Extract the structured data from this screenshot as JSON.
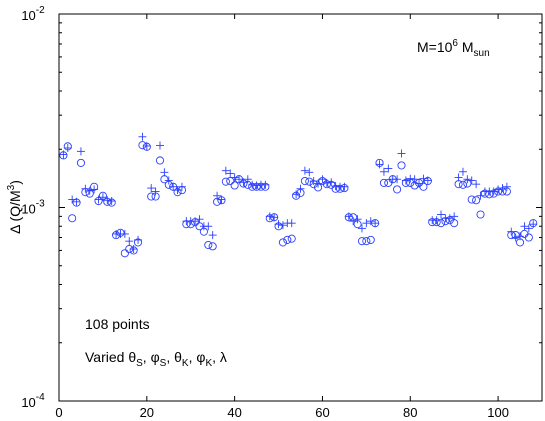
{
  "chart_data": {
    "type": "scatter",
    "xlabel": "",
    "ylabel": "Δ (Q/M³)",
    "ylabel_parts": {
      "main": "Δ (Q/M",
      "sup": "3",
      "tail": ")"
    },
    "xlim": [
      0,
      110
    ],
    "ylim": [
      0.0001,
      0.01
    ],
    "yscale": "log",
    "grid": false,
    "x_ticks": [
      0,
      20,
      40,
      60,
      80,
      100
    ],
    "y_ticks": [
      {
        "value": 0.0001,
        "base": "10",
        "exp": "-4"
      },
      {
        "value": 0.001,
        "base": "10",
        "exp": "-3"
      },
      {
        "value": 0.01,
        "base": "10",
        "exp": "-2"
      }
    ],
    "annotation_mass": {
      "prefix": "M=10",
      "exp": "6",
      "unit": " M",
      "sub": "sun"
    },
    "annotation_points": "108 points",
    "annotation_varied": {
      "prefix": "Varied ",
      "items": [
        {
          "sym": "θ",
          "sub": "S",
          "sep": ", "
        },
        {
          "sym": "φ",
          "sub": "S",
          "sep": ", "
        },
        {
          "sym": "θ",
          "sub": "K",
          "sep": ", "
        },
        {
          "sym": "φ",
          "sub": "K",
          "sep": ", "
        },
        {
          "sym": "λ",
          "sub": "",
          "sep": ""
        }
      ]
    },
    "series": [
      {
        "marker": "circle",
        "color": "#2a3fff",
        "x": [
          1,
          2,
          3,
          4,
          5,
          6,
          7,
          8,
          9,
          10,
          11,
          12,
          13,
          14,
          15,
          16,
          17,
          18,
          19,
          20,
          21,
          22,
          23,
          24,
          25,
          26,
          27,
          28,
          29,
          30,
          31,
          32,
          33,
          34,
          35,
          36,
          37,
          38,
          39,
          40,
          41,
          42,
          43,
          44,
          45,
          46,
          47,
          48,
          49,
          50,
          51,
          52,
          53,
          54,
          55,
          56,
          57,
          58,
          59,
          60,
          61,
          62,
          63,
          64,
          65,
          66,
          67,
          68,
          69,
          70,
          71,
          72,
          73,
          74,
          75,
          76,
          77,
          78,
          79,
          80,
          81,
          82,
          83,
          84,
          85,
          86,
          87,
          88,
          89,
          90,
          91,
          92,
          93,
          94,
          95,
          96,
          97,
          98,
          99,
          100,
          101,
          102,
          103,
          104,
          105,
          106,
          107,
          108
        ],
        "y": [
          0.00186,
          0.00207,
          0.00088,
          0.00106,
          0.0017,
          0.0012,
          0.00118,
          0.00128,
          0.00108,
          0.00115,
          0.00107,
          0.00106,
          0.00072,
          0.00074,
          0.00058,
          0.00061,
          0.0006,
          0.00066,
          0.0021,
          0.00206,
          0.00114,
          0.00114,
          0.00175,
          0.0014,
          0.00131,
          0.00128,
          0.0012,
          0.00123,
          0.00082,
          0.00082,
          0.00084,
          0.0008,
          0.00075,
          0.00064,
          0.00063,
          0.00107,
          0.00109,
          0.00136,
          0.00137,
          0.0013,
          0.0014,
          0.00133,
          0.00131,
          0.00128,
          0.00128,
          0.00128,
          0.00128,
          0.00088,
          0.00089,
          0.0008,
          0.00066,
          0.00068,
          0.00069,
          0.00115,
          0.00119,
          0.00137,
          0.00136,
          0.00132,
          0.00127,
          0.00137,
          0.00132,
          0.00131,
          0.00125,
          0.00125,
          0.00126,
          0.00089,
          0.00089,
          0.00082,
          0.00067,
          0.00067,
          0.00068,
          0.00083,
          0.0017,
          0.00134,
          0.00134,
          0.0014,
          0.00124,
          0.00165,
          0.00134,
          0.00134,
          0.0013,
          0.00134,
          0.00128,
          0.00137,
          0.00084,
          0.00084,
          0.00083,
          0.00085,
          0.00086,
          0.00083,
          0.00132,
          0.00131,
          0.00133,
          0.0011,
          0.00109,
          0.00092,
          0.00118,
          0.00117,
          0.00118,
          0.00121,
          0.00121,
          0.00121,
          0.00072,
          0.00072,
          0.00066,
          0.00073,
          0.0007,
          0.00083
        ]
      },
      {
        "marker": "plus",
        "color": "#2a3fff",
        "x": [
          1,
          2,
          3,
          4,
          5,
          6,
          7,
          8,
          9,
          10,
          11,
          12,
          13,
          14,
          15,
          16,
          17,
          18,
          19,
          20,
          21,
          22,
          23,
          24,
          25,
          26,
          27,
          28,
          29,
          30,
          31,
          32,
          33,
          34,
          35,
          36,
          37,
          38,
          39,
          40,
          41,
          42,
          43,
          44,
          45,
          46,
          47,
          48,
          49,
          50,
          51,
          52,
          53,
          54,
          55,
          56,
          57,
          58,
          59,
          60,
          61,
          62,
          63,
          64,
          65,
          66,
          67,
          68,
          69,
          70,
          71,
          72,
          73,
          74,
          75,
          76,
          77,
          78,
          79,
          80,
          81,
          82,
          83,
          84,
          85,
          86,
          87,
          88,
          89,
          90,
          91,
          92,
          93,
          94,
          95,
          96,
          97,
          98,
          99,
          100,
          101,
          102,
          103,
          104,
          105,
          106,
          107,
          108
        ],
        "y": [
          0.00188,
          0.00203,
          0.0011,
          0.00107,
          0.00195,
          0.00125,
          0.00122,
          0.00124,
          0.0011,
          0.00113,
          0.00109,
          0.00108,
          0.00073,
          0.00073,
          0.00073,
          0.00067,
          0.00061,
          0.00068,
          0.00232,
          0.00208,
          0.00126,
          0.00121,
          0.00209,
          0.00152,
          0.00138,
          0.00128,
          0.00123,
          0.00128,
          0.00085,
          0.00085,
          0.00085,
          0.00087,
          0.0008,
          0.0008,
          0.00072,
          0.00115,
          0.0011,
          0.00155,
          0.0015,
          0.00143,
          0.0014,
          0.00135,
          0.0014,
          0.00131,
          0.0013,
          0.00131,
          0.00131,
          0.0009,
          0.00089,
          0.00082,
          0.00081,
          0.00083,
          0.00083,
          0.00117,
          0.00125,
          0.00155,
          0.00152,
          0.00137,
          0.00133,
          0.0014,
          0.00134,
          0.00135,
          0.00129,
          0.00128,
          0.00128,
          0.0009,
          0.00085,
          0.00087,
          0.00078,
          0.00083,
          0.00085,
          0.00083,
          0.00167,
          0.00153,
          0.00159,
          0.0014,
          0.0014,
          0.0019,
          0.00138,
          0.00141,
          0.0014,
          0.00133,
          0.00141,
          0.00138,
          0.00086,
          0.00086,
          0.00092,
          0.00088,
          0.00088,
          0.0009,
          0.00143,
          0.00153,
          0.0014,
          0.00138,
          0.00132,
          0.00115,
          0.00121,
          0.00121,
          0.00121,
          0.00124,
          0.00126,
          0.00128,
          0.00075,
          0.0007,
          0.00071,
          0.0008,
          0.00078,
          0.00082
        ]
      }
    ]
  }
}
